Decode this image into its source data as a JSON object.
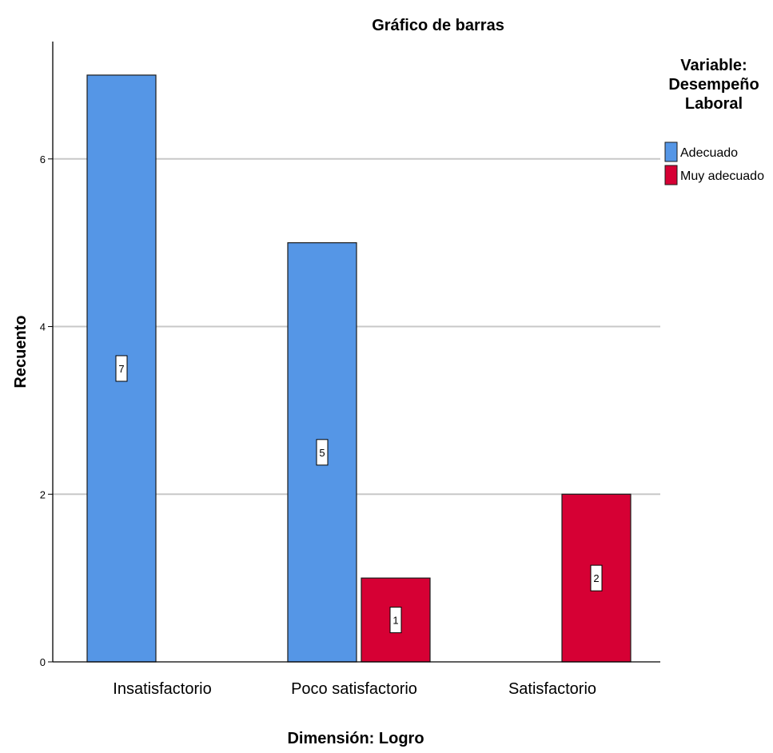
{
  "chart_data": {
    "type": "bar",
    "title": "Gráfico de barras",
    "xlabel": "Dimensión: Logro",
    "ylabel": "Recuento",
    "categories": [
      "Insatisfactorio",
      "Poco satisfactorio",
      "Satisfactorio"
    ],
    "series": [
      {
        "name": "Adecuado",
        "values": [
          7,
          5,
          0
        ],
        "color": "#5596e6"
      },
      {
        "name": "Muy adecuado",
        "values": [
          0,
          1,
          2
        ],
        "color": "#d60034"
      }
    ],
    "data_labels": [
      {
        "series": 0,
        "category": 0,
        "text": "7"
      },
      {
        "series": 0,
        "category": 1,
        "text": "5"
      },
      {
        "series": 1,
        "category": 1,
        "text": "1"
      },
      {
        "series": 1,
        "category": 2,
        "text": "2"
      }
    ],
    "ylim": [
      0,
      7.4
    ],
    "yticks": [
      0,
      2,
      4,
      6
    ],
    "grid": true,
    "legend": {
      "title_lines": [
        "Variable:",
        "Desempeño",
        "Laboral"
      ],
      "position": "right"
    }
  }
}
